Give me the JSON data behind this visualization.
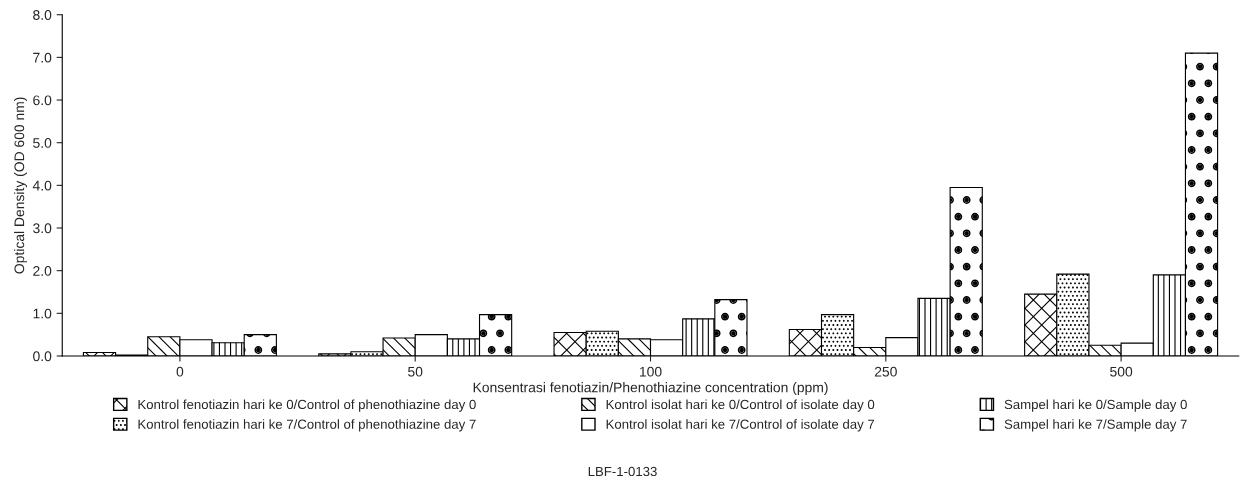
{
  "chart_data": {
    "type": "bar",
    "xlabel": "Konsentrasi fenotiazin/Phenothiazine concentration (ppm)",
    "ylabel": "Optical Density (OD 600 nm)",
    "categories": [
      "0",
      "50",
      "100",
      "250",
      "500"
    ],
    "series": [
      {
        "name": "Kontrol fenotiazin hari ke 0/Control of phenothiazine day 0",
        "color": "#000000",
        "values": [
          0.08,
          0.05,
          0.55,
          0.62,
          1.45
        ]
      },
      {
        "name": "Kontrol fenotiazin hari ke 7/Control of phenothiazine day 7",
        "color": "#000000",
        "values": [
          0.02,
          0.1,
          0.58,
          0.97,
          1.92
        ]
      },
      {
        "name": "Kontrol isolat hari ke 0/Control of isolate day 0",
        "color": "#000000",
        "values": [
          0.45,
          0.42,
          0.4,
          0.2,
          0.25
        ]
      },
      {
        "name": "Kontrol isolat hari ke 7/Control of isolate day 7",
        "color": "#000000",
        "values": [
          0.38,
          0.5,
          0.38,
          0.43,
          0.3
        ]
      },
      {
        "name": "Sampel hari ke 0/Sample day 0",
        "color": "#000000",
        "values": [
          0.31,
          0.4,
          0.87,
          1.35,
          1.9
        ]
      },
      {
        "name": "Sampel hari ke 7/Sample day 7",
        "color": "#000000",
        "values": [
          0.5,
          0.97,
          1.32,
          3.95,
          7.1
        ]
      }
    ],
    "ylim": [
      0,
      8
    ],
    "yticks": [
      {
        "value": 0,
        "label": "0.0"
      },
      {
        "value": 1,
        "label": "1.0"
      },
      {
        "value": 2,
        "label": "2.0"
      },
      {
        "value": 3,
        "label": "3.0"
      },
      {
        "value": 4,
        "label": "4.0"
      },
      {
        "value": 5,
        "label": "5.0"
      },
      {
        "value": 6,
        "label": "6.0"
      },
      {
        "value": 7,
        "label": "7.0"
      },
      {
        "value": 8,
        "label": "8.0"
      }
    ],
    "grid": false,
    "legend": "bottom",
    "annotations": [
      "LBF-1-0133"
    ]
  }
}
